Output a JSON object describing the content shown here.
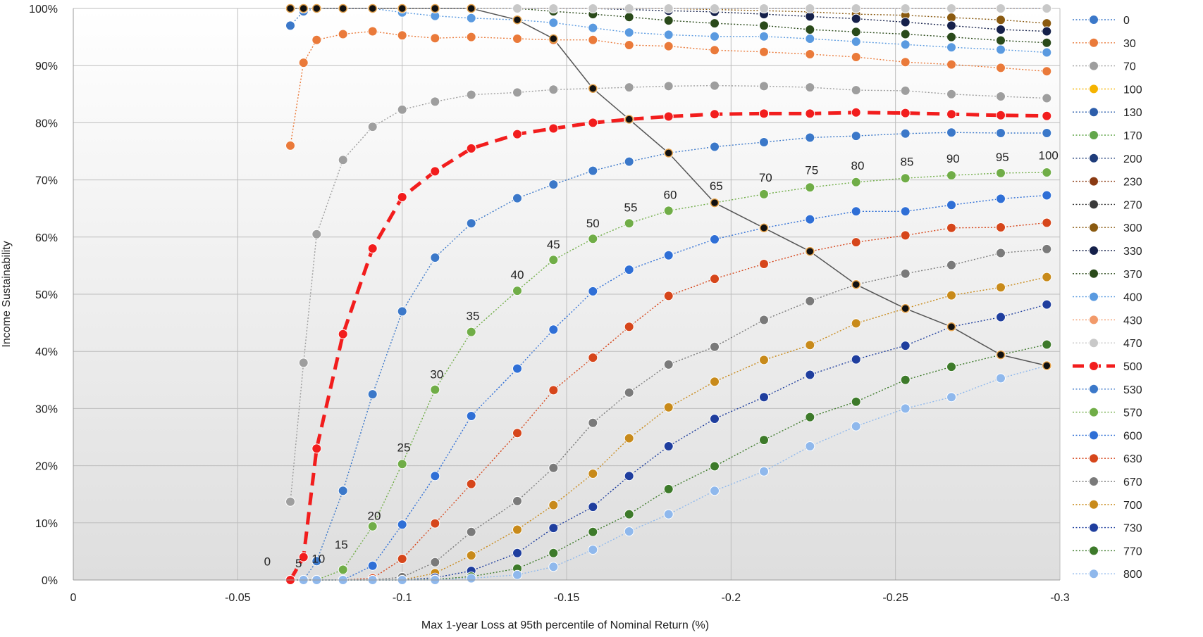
{
  "chart_data": {
    "type": "line",
    "xlabel": "Max 1-year Loss at 95th percentile of Nominal Return (%)",
    "ylabel": "Income Sustainability",
    "xlim": [
      0,
      -0.3
    ],
    "ylim": [
      0,
      1
    ],
    "x_ticks": [
      0,
      -0.05,
      -0.1,
      -0.15,
      -0.2,
      -0.25,
      -0.3
    ],
    "x_tick_labels": [
      "0",
      "-0.05",
      "-0.1",
      "-0.15",
      "-0.2",
      "-0.25",
      "-0.3"
    ],
    "y_ticks": [
      0,
      0.1,
      0.2,
      0.3,
      0.4,
      0.5,
      0.6,
      0.7,
      0.8,
      0.9,
      1.0
    ],
    "y_tick_labels": [
      "0%",
      "10%",
      "20%",
      "30%",
      "40%",
      "50%",
      "60%",
      "70%",
      "80%",
      "90%",
      "100%"
    ],
    "grid": true,
    "legend_position": "right",
    "highlight_series": "500",
    "x": [
      -0.066,
      -0.07,
      -0.074,
      -0.082,
      -0.091,
      -0.1,
      -0.11,
      -0.121,
      -0.135,
      -0.146,
      -0.158,
      -0.169,
      -0.181,
      -0.195,
      -0.21,
      -0.224,
      -0.238,
      -0.253,
      -0.267,
      -0.282,
      -0.296
    ],
    "series": [
      {
        "name": "0",
        "color": "#3b78c9",
        "values": [
          0.97,
          0.995,
          1,
          1,
          1,
          1,
          1,
          1,
          1,
          1,
          1,
          1,
          1,
          1,
          1,
          1,
          1,
          1,
          1,
          1,
          1
        ]
      },
      {
        "name": "30",
        "color": "#ea7a3a",
        "values": [
          0.76,
          0.905,
          0.945,
          0.955,
          0.96,
          0.953,
          0.948,
          0.95,
          0.947,
          0.945,
          0.945,
          0.936,
          0.934,
          0.927,
          0.924,
          0.92,
          0.915,
          0.906,
          0.902,
          0.896,
          0.89
        ]
      },
      {
        "name": "70",
        "color": "#9e9e9e",
        "values": [
          0.137,
          0.38,
          0.605,
          0.735,
          0.793,
          0.823,
          0.837,
          0.849,
          0.853,
          0.858,
          0.86,
          0.862,
          0.864,
          0.865,
          0.864,
          0.862,
          0.857,
          0.856,
          0.85,
          0.846,
          0.843
        ]
      },
      {
        "name": "100",
        "color": "#f5b300",
        "values": [
          1,
          1,
          1,
          1,
          1,
          1,
          1,
          1,
          1,
          1,
          1,
          1,
          1,
          1,
          1,
          1,
          1,
          1,
          1,
          1,
          1
        ]
      },
      {
        "name": "130",
        "color": "#2d5eab",
        "values": [
          1,
          1,
          1,
          1,
          1,
          1,
          1,
          1,
          1,
          1,
          1,
          1,
          1,
          1,
          1,
          1,
          1,
          1,
          1,
          1,
          1
        ]
      },
      {
        "name": "170",
        "color": "#62a64a",
        "values": [
          1,
          1,
          1,
          1,
          1,
          1,
          1,
          1,
          1,
          1,
          1,
          1,
          1,
          1,
          1,
          1,
          1,
          1,
          1,
          1,
          1
        ]
      },
      {
        "name": "200",
        "color": "#1f3c7a",
        "values": [
          1,
          1,
          1,
          1,
          1,
          1,
          1,
          1,
          1,
          1,
          1,
          1,
          1,
          1,
          1,
          1,
          1,
          1,
          1,
          1,
          1
        ]
      },
      {
        "name": "230",
        "color": "#8a3a12",
        "values": [
          1,
          1,
          1,
          1,
          1,
          1,
          1,
          1,
          1,
          1,
          1,
          1,
          1,
          1,
          1,
          1,
          1,
          1,
          1,
          1,
          1
        ]
      },
      {
        "name": "270",
        "color": "#3a3a3a",
        "values": [
          1,
          1,
          1,
          1,
          1,
          1,
          1,
          1,
          1,
          1,
          1,
          1,
          1,
          1,
          1,
          1,
          1,
          1,
          1,
          1,
          1
        ]
      },
      {
        "name": "300",
        "color": "#8a5a10",
        "values": [
          1,
          1,
          1,
          1,
          1,
          1,
          1,
          1,
          1,
          1,
          1,
          1,
          1,
          0.998,
          0.996,
          0.994,
          0.99,
          0.988,
          0.984,
          0.98,
          0.974
        ]
      },
      {
        "name": "330",
        "color": "#15204a",
        "values": [
          1,
          1,
          1,
          1,
          1,
          1,
          1,
          1,
          1,
          1,
          1,
          0.998,
          0.996,
          0.994,
          0.99,
          0.986,
          0.982,
          0.976,
          0.97,
          0.963,
          0.96
        ]
      },
      {
        "name": "370",
        "color": "#2a4a1a",
        "values": [
          1,
          1,
          1,
          1,
          1,
          1,
          1,
          1,
          1,
          0.995,
          0.99,
          0.985,
          0.979,
          0.974,
          0.97,
          0.963,
          0.959,
          0.955,
          0.95,
          0.944,
          0.94
        ]
      },
      {
        "name": "400",
        "color": "#5a9ae0",
        "values": [
          1,
          1,
          1,
          1,
          1,
          0.993,
          0.987,
          0.983,
          0.98,
          0.975,
          0.966,
          0.958,
          0.954,
          0.951,
          0.951,
          0.947,
          0.942,
          0.937,
          0.932,
          0.928,
          0.923
        ]
      },
      {
        "name": "430",
        "color": "#f29a6a",
        "values": [
          1,
          1,
          1,
          1,
          1,
          1,
          1,
          1,
          1,
          1,
          1,
          1,
          1,
          1,
          1,
          1,
          1,
          1,
          1,
          1,
          1
        ]
      },
      {
        "name": "470",
        "color": "#c8c8c8",
        "values": [
          1,
          1,
          1,
          1,
          1,
          1,
          1,
          1,
          1,
          1,
          1,
          1,
          1,
          1,
          1,
          1,
          1,
          1,
          1,
          1,
          1
        ]
      },
      {
        "name": "500",
        "color": "#f21d1d",
        "values": [
          0.0,
          0.04,
          0.23,
          0.43,
          0.58,
          0.67,
          0.715,
          0.755,
          0.78,
          0.79,
          0.8,
          0.806,
          0.811,
          0.815,
          0.816,
          0.816,
          0.818,
          0.817,
          0.815,
          0.813,
          0.812
        ]
      },
      {
        "name": "530",
        "color": "#3b78c9",
        "values": [
          0,
          0,
          0.033,
          0.156,
          0.325,
          0.47,
          0.564,
          0.624,
          0.668,
          0.692,
          0.716,
          0.732,
          0.747,
          0.758,
          0.766,
          0.774,
          0.777,
          0.781,
          0.783,
          0.782,
          0.782
        ]
      },
      {
        "name": "570",
        "color": "#70ad47",
        "values": [
          0,
          0,
          0,
          0.018,
          0.094,
          0.203,
          0.333,
          0.434,
          0.506,
          0.56,
          0.597,
          0.624,
          0.646,
          0.66,
          0.675,
          0.687,
          0.696,
          0.703,
          0.708,
          0.712,
          0.713
        ]
      },
      {
        "name": "600",
        "color": "#2f6fd6",
        "values": [
          0,
          0,
          0,
          0,
          0.025,
          0.097,
          0.182,
          0.287,
          0.37,
          0.438,
          0.505,
          0.543,
          0.568,
          0.596,
          0.616,
          0.631,
          0.645,
          0.645,
          0.656,
          0.667,
          0.673
        ]
      },
      {
        "name": "630",
        "color": "#d6461b",
        "values": [
          0,
          0,
          0,
          0,
          0.003,
          0.037,
          0.099,
          0.168,
          0.257,
          0.332,
          0.389,
          0.443,
          0.497,
          0.527,
          0.553,
          0.575,
          0.591,
          0.603,
          0.616,
          0.617,
          0.625
        ]
      },
      {
        "name": "670",
        "color": "#7a7a7a",
        "values": [
          0,
          0,
          0,
          0,
          0,
          0.005,
          0.031,
          0.084,
          0.138,
          0.196,
          0.275,
          0.328,
          0.377,
          0.408,
          0.455,
          0.488,
          0.517,
          0.536,
          0.551,
          0.572,
          0.579
        ]
      },
      {
        "name": "700",
        "color": "#c88a1a",
        "values": [
          0,
          0,
          0,
          0,
          0,
          0,
          0.012,
          0.043,
          0.088,
          0.131,
          0.186,
          0.248,
          0.302,
          0.347,
          0.385,
          0.411,
          0.449,
          0.475,
          0.498,
          0.512,
          0.53
        ]
      },
      {
        "name": "730",
        "color": "#1f3e9e",
        "values": [
          0,
          0,
          0,
          0,
          0,
          0,
          0.004,
          0.016,
          0.047,
          0.091,
          0.128,
          0.182,
          0.234,
          0.282,
          0.32,
          0.359,
          0.386,
          0.41,
          0.443,
          0.46,
          0.482
        ]
      },
      {
        "name": "770",
        "color": "#3d7a2a",
        "values": [
          0,
          0,
          0,
          0,
          0,
          0,
          0.001,
          0.006,
          0.02,
          0.047,
          0.084,
          0.115,
          0.159,
          0.199,
          0.245,
          0.285,
          0.312,
          0.35,
          0.373,
          0.394,
          0.412
        ]
      },
      {
        "name": "800",
        "color": "#8fb8ec",
        "values": [
          0,
          0,
          0,
          0,
          0,
          0,
          0,
          0.003,
          0.009,
          0.023,
          0.053,
          0.085,
          0.115,
          0.156,
          0.19,
          0.234,
          0.269,
          0.3,
          0.32,
          0.353,
          0.375
        ]
      }
    ],
    "frontier": {
      "x": [
        -0.066,
        -0.07,
        -0.074,
        -0.082,
        -0.091,
        -0.1,
        -0.11,
        -0.121,
        -0.135,
        -0.146,
        -0.158,
        -0.169,
        -0.181,
        -0.195,
        -0.21,
        -0.224,
        -0.238,
        -0.253,
        -0.267,
        -0.282,
        -0.296
      ],
      "values": [
        1,
        1,
        1,
        1,
        1,
        1,
        1,
        1,
        0.98,
        0.947,
        0.86,
        0.806,
        0.747,
        0.66,
        0.616,
        0.575,
        0.517,
        0.475,
        0.443,
        0.394,
        0.375
      ]
    },
    "annotations": [
      {
        "text": "0",
        "x": -0.059,
        "y": 0.025
      },
      {
        "text": "5",
        "x": -0.0685,
        "y": 0.022
      },
      {
        "text": "10",
        "x": -0.0745,
        "y": 0.03
      },
      {
        "text": "15",
        "x": -0.0815,
        "y": 0.055
      },
      {
        "text": "20",
        "x": -0.0915,
        "y": 0.105
      },
      {
        "text": "25",
        "x": -0.1005,
        "y": 0.225
      },
      {
        "text": "30",
        "x": -0.1105,
        "y": 0.353
      },
      {
        "text": "35",
        "x": -0.1215,
        "y": 0.455
      },
      {
        "text": "40",
        "x": -0.135,
        "y": 0.527
      },
      {
        "text": "45",
        "x": -0.146,
        "y": 0.58
      },
      {
        "text": "50",
        "x": -0.158,
        "y": 0.617
      },
      {
        "text": "55",
        "x": -0.1695,
        "y": 0.645
      },
      {
        "text": "60",
        "x": -0.1815,
        "y": 0.667
      },
      {
        "text": "65",
        "x": -0.1955,
        "y": 0.682
      },
      {
        "text": "70",
        "x": -0.2105,
        "y": 0.697
      },
      {
        "text": "75",
        "x": -0.2245,
        "y": 0.71
      },
      {
        "text": "80",
        "x": -0.2385,
        "y": 0.718
      },
      {
        "text": "85",
        "x": -0.2535,
        "y": 0.725
      },
      {
        "text": "90",
        "x": -0.2675,
        "y": 0.73
      },
      {
        "text": "95",
        "x": -0.2825,
        "y": 0.733
      },
      {
        "text": "100",
        "x": -0.2965,
        "y": 0.736
      }
    ]
  }
}
